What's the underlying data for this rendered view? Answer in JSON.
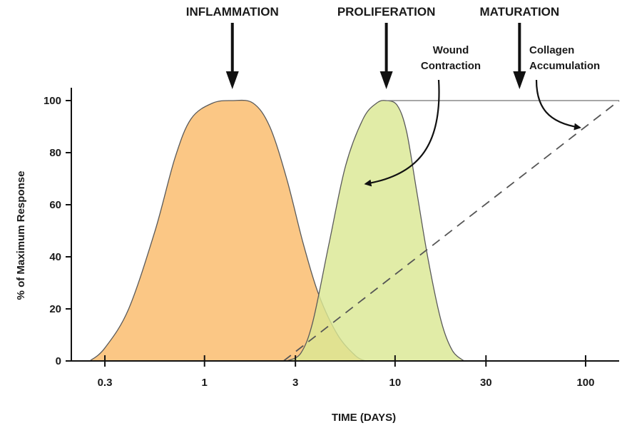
{
  "chart_data": {
    "type": "area",
    "xlabel": "TIME (DAYS)",
    "ylabel": "% of Maximum Response",
    "x_scale": "log",
    "xlim": [
      0.2,
      150
    ],
    "ylim": [
      0,
      100
    ],
    "x_ticks": [
      {
        "value": 0.3,
        "label": "0.3"
      },
      {
        "value": 1,
        "label": "1"
      },
      {
        "value": 3,
        "label": "3"
      },
      {
        "value": 10,
        "label": "10"
      },
      {
        "value": 30,
        "label": "30"
      },
      {
        "value": 100,
        "label": "100"
      }
    ],
    "y_ticks": [
      {
        "value": 0,
        "label": "0"
      },
      {
        "value": 20,
        "label": "20"
      },
      {
        "value": 40,
        "label": "40"
      },
      {
        "value": 60,
        "label": "60"
      },
      {
        "value": 80,
        "label": "80"
      },
      {
        "value": 100,
        "label": "100"
      }
    ],
    "series": [
      {
        "color": "#fbc785",
        "style": "filled",
        "points": [
          [
            0.25,
            0
          ],
          [
            0.3,
            5
          ],
          [
            0.4,
            20
          ],
          [
            0.55,
            50
          ],
          [
            0.7,
            78
          ],
          [
            0.85,
            93
          ],
          [
            1.1,
            99
          ],
          [
            1.4,
            100
          ],
          [
            1.8,
            99
          ],
          [
            2.2,
            90
          ],
          [
            2.7,
            70
          ],
          [
            3.3,
            45
          ],
          [
            4,
            25
          ],
          [
            5,
            10
          ],
          [
            6.2,
            2
          ],
          [
            7,
            0
          ]
        ]
      },
      {
        "color": "#dbe894",
        "style": "filled",
        "points": [
          [
            2.7,
            0
          ],
          [
            3.2,
            3
          ],
          [
            3.7,
            15
          ],
          [
            4.5,
            45
          ],
          [
            5.5,
            75
          ],
          [
            6.8,
            93
          ],
          [
            8,
            99
          ],
          [
            9,
            100
          ],
          [
            10.3,
            98
          ],
          [
            11.5,
            88
          ],
          [
            13,
            65
          ],
          [
            15,
            38
          ],
          [
            17.5,
            15
          ],
          [
            20,
            4
          ],
          [
            23,
            0
          ]
        ]
      },
      {
        "color": "#555555",
        "style": "dashed",
        "points": [
          [
            2.6,
            0
          ],
          [
            150,
            100
          ]
        ]
      },
      {
        "color": "#8a8a8a",
        "style": "line",
        "points": [
          [
            9,
            100
          ],
          [
            150,
            100
          ]
        ]
      }
    ],
    "phases": [
      {
        "label": "INFLAMMATION",
        "x": 1.4
      },
      {
        "label": "PROLIFERATION",
        "x": 9
      },
      {
        "label": "MATURATION",
        "x": 45
      }
    ],
    "annotations": [
      {
        "label_lines": [
          "Wound",
          "Contraction"
        ],
        "target": [
          7,
          68
        ]
      },
      {
        "label_lines": [
          "Collagen",
          "Accumulation"
        ],
        "target": [
          100,
          88
        ]
      }
    ]
  }
}
